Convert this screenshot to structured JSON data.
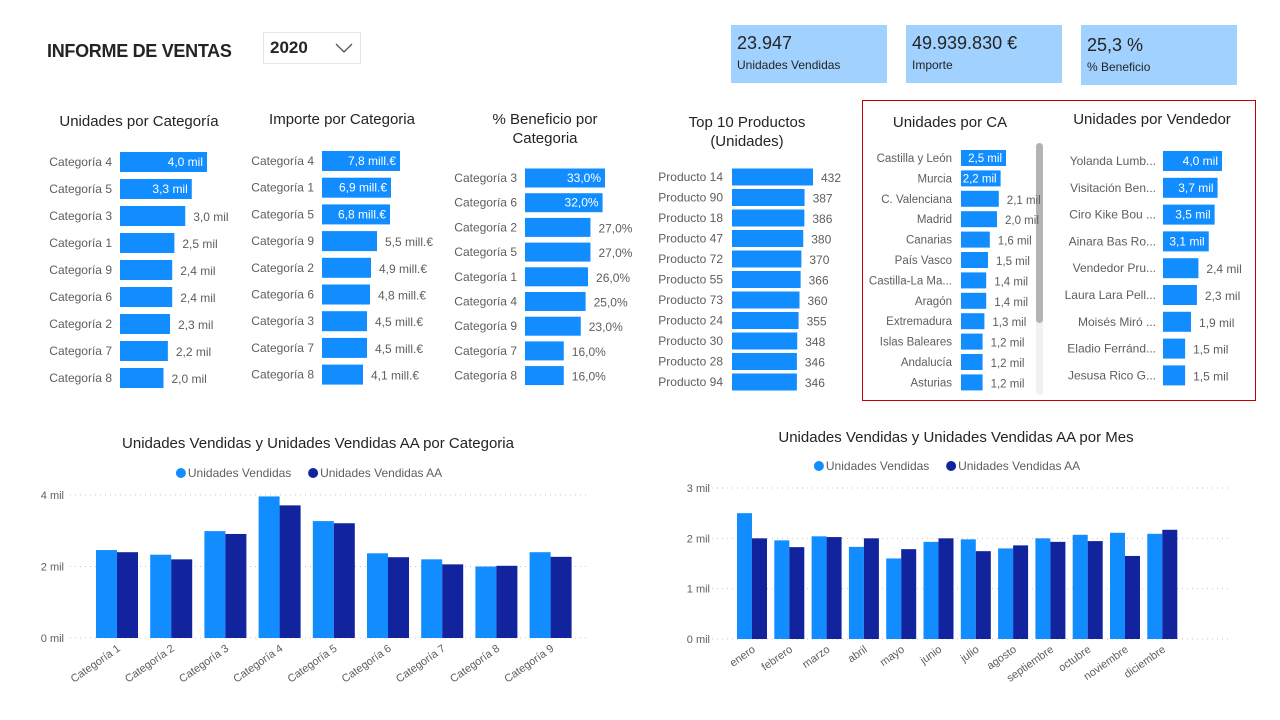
{
  "header": {
    "title": "INFORME DE VENTAS",
    "year_slicer": {
      "selected": "2020",
      "icon": "chevron-down-icon"
    }
  },
  "kpis": [
    {
      "value": "23.947",
      "label": "Unidades Vendidas"
    },
    {
      "value": "49.939.830 €",
      "label": "Importe"
    },
    {
      "value": "25,3 %",
      "label": "% Beneficio"
    }
  ],
  "colors": {
    "bar": "#118DFF",
    "bar_aa": "#12239E",
    "kpi_bg": "#A0D1FF",
    "highlight_border": "#C00000"
  },
  "chart_data": [
    {
      "id": "unidades-categoria",
      "type": "bar",
      "orientation": "horizontal",
      "title": [
        "Unidades por Categoría"
      ],
      "categories": [
        "Categoría 4",
        "Categoría 5",
        "Categoría 3",
        "Categoría 1",
        "Categoría 9",
        "Categoría 6",
        "Categoría 2",
        "Categoría 7",
        "Categoría 8"
      ],
      "values": [
        4.0,
        3.3,
        3.0,
        2.5,
        2.4,
        2.4,
        2.3,
        2.2,
        2.0
      ],
      "labels": [
        "4,0 mil",
        "3,3 mil",
        "3,0 mil",
        "2,5 mil",
        "2,4 mil",
        "2,4 mil",
        "2,3 mil",
        "2,2 mil",
        "2,0 mil"
      ],
      "unit": "mil"
    },
    {
      "id": "importe-categoria",
      "type": "bar",
      "orientation": "horizontal",
      "title": [
        "Importe por Categoria"
      ],
      "categories": [
        "Categoría 4",
        "Categoría 1",
        "Categoría 5",
        "Categoría 9",
        "Categoría 2",
        "Categoría 6",
        "Categoría 3",
        "Categoría 7",
        "Categoría 8"
      ],
      "values": [
        7.8,
        6.9,
        6.8,
        5.5,
        4.9,
        4.8,
        4.5,
        4.5,
        4.1
      ],
      "labels": [
        "7,8 mill.€",
        "6,9 mill.€",
        "6,8 mill.€",
        "5,5 mill.€",
        "4,9 mill.€",
        "4,8 mill.€",
        "4,5 mill.€",
        "4,5 mill.€",
        "4,1 mill.€"
      ],
      "unit": "mill.€"
    },
    {
      "id": "beneficio-categoria",
      "type": "bar",
      "orientation": "horizontal",
      "title": [
        "% Beneficio por",
        "Categoria"
      ],
      "categories": [
        "Categoría 3",
        "Categoría 6",
        "Categoría 2",
        "Categoría 5",
        "Categoría 1",
        "Categoría 4",
        "Categoría 9",
        "Categoría 7",
        "Categoría 8"
      ],
      "values": [
        33,
        32,
        27,
        27,
        26,
        25,
        23,
        16,
        16
      ],
      "labels": [
        "33,0%",
        "32,0%",
        "27,0%",
        "27,0%",
        "26,0%",
        "25,0%",
        "23,0%",
        "16,0%",
        "16,0%"
      ],
      "unit": "%"
    },
    {
      "id": "top10-productos",
      "type": "bar",
      "orientation": "horizontal",
      "title": [
        "Top 10 Productos",
        "(Unidades)"
      ],
      "categories": [
        "Producto 14",
        "Producto 90",
        "Producto 18",
        "Producto 47",
        "Producto 72",
        "Producto 55",
        "Producto 73",
        "Producto 24",
        "Producto 30",
        "Producto 28",
        "Producto 94"
      ],
      "values": [
        432,
        387,
        386,
        380,
        370,
        366,
        360,
        355,
        348,
        346,
        346
      ],
      "labels": [
        "432",
        "387",
        "386",
        "380",
        "370",
        "366",
        "360",
        "355",
        "348",
        "346",
        "346"
      ]
    },
    {
      "id": "unidades-ca",
      "type": "bar",
      "orientation": "horizontal",
      "title": [
        "Unidades por CA"
      ],
      "categories": [
        "Castilla y León",
        "Murcia",
        "C. Valenciana",
        "Madrid",
        "Canarias",
        "País Vasco",
        "Castilla-La Ma...",
        "Aragón",
        "Extremadura",
        "Islas Baleares",
        "Andalucía",
        "Asturias"
      ],
      "values": [
        2.5,
        2.2,
        2.1,
        2.0,
        1.6,
        1.5,
        1.4,
        1.4,
        1.3,
        1.2,
        1.2,
        1.2
      ],
      "labels": [
        "2,5 mil",
        "2,2 mil",
        "2,1 mil",
        "2,0 mil",
        "1,6 mil",
        "1,5 mil",
        "1,4 mil",
        "1,4 mil",
        "1,3 mil",
        "1,2 mil",
        "1,2 mil",
        "1,2 mil"
      ],
      "unit": "mil"
    },
    {
      "id": "unidades-vendedor",
      "type": "bar",
      "orientation": "horizontal",
      "title": [
        "Unidades por Vendedor"
      ],
      "categories": [
        "Yolanda Lumb...",
        "Visitación Ben...",
        "Ciro Kike Bou ...",
        "Ainara Bas Ro...",
        "Vendedor Pru...",
        "Laura Lara Pell...",
        "Moisés Miró ...",
        "Eladio Ferránd...",
        "Jesusa Rico G..."
      ],
      "values": [
        4.0,
        3.7,
        3.5,
        3.1,
        2.4,
        2.3,
        1.9,
        1.5,
        1.5
      ],
      "labels": [
        "4,0 mil",
        "3,7 mil",
        "3,5 mil",
        "3,1 mil",
        "2,4 mil",
        "2,3 mil",
        "1,9 mil",
        "1,5 mil",
        "1,5 mil"
      ],
      "unit": "mil"
    },
    {
      "id": "unidades-aa-categoria",
      "type": "bar",
      "orientation": "vertical",
      "title": [
        "Unidades Vendidas y Unidades Vendidas AA por Categoria"
      ],
      "categories": [
        "Categoría 1",
        "Categoría 2",
        "Categoría 3",
        "Categoría 4",
        "Categoría 5",
        "Categoría 6",
        "Categoría 7",
        "Categoría 8",
        "Categoría 9"
      ],
      "series": [
        {
          "name": "Unidades Vendidas",
          "values": [
            2460,
            2330,
            2990,
            3960,
            3270,
            2370,
            2200,
            2000,
            2400
          ]
        },
        {
          "name": "Unidades Vendidas AA",
          "values": [
            2400,
            2200,
            2910,
            3710,
            3210,
            2260,
            2060,
            2020,
            2270
          ]
        }
      ],
      "ylim": [
        0,
        4000
      ],
      "yticks": [
        "0 mil",
        "2 mil",
        "4 mil"
      ],
      "ytick_values": [
        0,
        2000,
        4000
      ],
      "grid": true,
      "legend": "top-center"
    },
    {
      "id": "unidades-aa-mes",
      "type": "bar",
      "orientation": "vertical",
      "title": [
        "Unidades Vendidas y Unidades Vendidas AA por Mes"
      ],
      "categories": [
        "enero",
        "febrero",
        "marzo",
        "abril",
        "mayo",
        "junio",
        "julio",
        "agosto",
        "septiembre",
        "octubre",
        "noviembre",
        "diciembre"
      ],
      "series": [
        {
          "name": "Unidades Vendidas",
          "values": [
            2500,
            1960,
            2040,
            1830,
            1600,
            1930,
            1980,
            1800,
            2000,
            2070,
            2110,
            2090
          ]
        },
        {
          "name": "Unidades Vendidas AA",
          "values": [
            2000,
            1825,
            2025,
            2000,
            1785,
            2000,
            1745,
            1860,
            1930,
            1945,
            1650,
            2170
          ]
        }
      ],
      "ylim": [
        0,
        3000
      ],
      "yticks": [
        "0 mil",
        "1 mil",
        "2 mil",
        "3 mil"
      ],
      "ytick_values": [
        0,
        1000,
        2000,
        3000
      ],
      "grid": true,
      "legend": "top-center"
    }
  ]
}
